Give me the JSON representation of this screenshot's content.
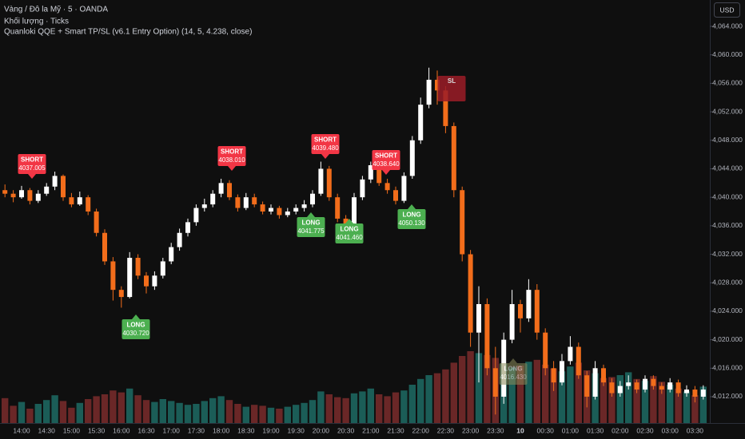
{
  "header": {
    "symbol": "Vàng / Đô la Mỹ · 5 · OANDA",
    "volume_line": "Khối lượng · Ticks",
    "indicator": "Quanloki QQE + Smart TP/SL (v6.1 Entry Option) (14, 5, 4.238, close)",
    "currency": "USD"
  },
  "chart_data": {
    "type": "candlestick",
    "categories": [
      null,
      null,
      "14:00",
      null,
      null,
      "14:30",
      null,
      null,
      "15:00",
      null,
      null,
      "15:30",
      null,
      null,
      "16:00",
      null,
      null,
      "16:30",
      null,
      null,
      "17:00",
      null,
      null,
      "17:30",
      null,
      null,
      "18:00",
      null,
      null,
      "18:30",
      null,
      null,
      "19:00",
      null,
      null,
      "19:30",
      null,
      null,
      "20:00",
      null,
      null,
      "20:30",
      null,
      null,
      "21:00",
      null,
      null,
      "21:30",
      null,
      null,
      "22:00",
      null,
      null,
      "22:30",
      null,
      null,
      "23:00",
      null,
      null,
      "23:30",
      null,
      null,
      "10",
      null,
      null,
      "00:30",
      null,
      null,
      "01:00",
      null,
      null,
      "01:30",
      null,
      null,
      "02:00",
      null,
      null,
      "02:30",
      null,
      null,
      "03:00",
      null,
      null,
      "03:30",
      null
    ],
    "open": [
      4041,
      4040.5,
      4040,
      4041,
      4039.5,
      4040.5,
      4041.5,
      4043,
      4040,
      4039,
      4040,
      4038,
      4035,
      4031,
      4027,
      4026,
      4031.5,
      4029,
      4027.5,
      4029,
      4031,
      4033,
      4035,
      4036.5,
      4038.5,
      4039,
      4040.5,
      4042,
      4040,
      4038.5,
      4040,
      4039,
      4038,
      4038.5,
      4037.5,
      4038,
      4038.5,
      4039,
      4040.5,
      4044,
      4040,
      4037,
      4036,
      4040,
      4042.5,
      4044.5,
      4042,
      4041,
      4039.5,
      4043,
      4048,
      4053,
      4056.5,
      4055,
      4050,
      4041,
      4032,
      4021,
      4025,
      4016,
      4012,
      4020,
      4025,
      4023,
      4027,
      4021,
      4016,
      4014,
      4017,
      4019,
      4015,
      4012,
      4016,
      4014,
      4012.5,
      4013.5,
      4014,
      4013,
      4014.5,
      4013.5,
      4013,
      4014,
      4012.5,
      4013,
      4012
    ],
    "high": [
      4041.8,
      4041,
      4041.6,
      4041.3,
      4041,
      4042,
      4043.6,
      4043.2,
      4040.6,
      4040.8,
      4040.3,
      4038.4,
      4035.5,
      4031.6,
      4027.5,
      4032.3,
      4032,
      4029.5,
      4029.6,
      4031.5,
      4033.6,
      4035.6,
      4037,
      4039,
      4039.8,
      4041,
      4042.6,
      4042.4,
      4040.4,
      4040.6,
      4040.5,
      4039.4,
      4039,
      4038.8,
      4038.5,
      4039,
      4039.6,
      4041,
      4045,
      4044.4,
      4040.5,
      4037.5,
      4040.6,
      4043,
      4045,
      4044.9,
      4042.6,
      4041.5,
      4043.5,
      4048.6,
      4054,
      4058.2,
      4057.8,
      4055.6,
      4050.5,
      4041.5,
      4032.6,
      4027.5,
      4025.8,
      4019,
      4021,
      4027,
      4025.6,
      4028.5,
      4027.8,
      4021.6,
      4017,
      4018,
      4020.5,
      4019.6,
      4015.6,
      4017,
      4016.5,
      4014.6,
      4014.2,
      4015,
      4014.4,
      4015,
      4015,
      4014,
      4014.6,
      4014.4,
      4013.6,
      4013.5,
      4013.6
    ],
    "low": [
      4040,
      4039.3,
      4039.8,
      4039,
      4039.2,
      4040.2,
      4041,
      4039.5,
      4038.6,
      4038.8,
      4037.5,
      4034.5,
      4030.5,
      4025.5,
      4024.5,
      4025.8,
      4028.5,
      4026.5,
      4027,
      4028.6,
      4030.6,
      4032.5,
      4034.5,
      4036,
      4038,
      4038.6,
      4040,
      4039.6,
      4038,
      4038.2,
      4038.6,
      4037.6,
      4037.6,
      4037,
      4037.2,
      4037.6,
      4038,
      4038.6,
      4040.2,
      4039.5,
      4036.5,
      4035,
      4035.7,
      4039.6,
      4042,
      4041.6,
      4040.5,
      4039,
      4039.2,
      4042.6,
      4047.5,
      4052.5,
      4053,
      4049,
      4040,
      4031,
      4019,
      4014,
      4015,
      4009.5,
      4011,
      4019.5,
      4021,
      4022.5,
      4020,
      4015,
      4012.8,
      4013.6,
      4016.5,
      4014.5,
      4010.5,
      4011.6,
      4013.5,
      4012,
      4012,
      4013,
      4012.5,
      4012.6,
      4013,
      4012.4,
      4012.6,
      4012,
      4012,
      4011.2,
      4011.6
    ],
    "close": [
      4040.5,
      4040,
      4041,
      4039.5,
      4040.5,
      4041.5,
      4043,
      4040,
      4039,
      4040,
      4038,
      4035,
      4031,
      4027,
      4026,
      4031.5,
      4029,
      4027.5,
      4029,
      4031,
      4033,
      4035,
      4036.5,
      4038.5,
      4039,
      4040.5,
      4042,
      4040,
      4038.5,
      4040,
      4039,
      4038,
      4038.5,
      4037.5,
      4038,
      4038.5,
      4039,
      4040.5,
      4044,
      4040,
      4037,
      4036,
      4040,
      4042.5,
      4044.5,
      4042,
      4041,
      4039.5,
      4043,
      4048,
      4053,
      4056.5,
      4055,
      4050,
      4041,
      4032,
      4021,
      4025,
      4016,
      4012,
      4020,
      4025,
      4023,
      4027,
      4021,
      4016,
      4014,
      4017,
      4019,
      4015,
      4012,
      4016,
      4014,
      4012.5,
      4013.5,
      4014,
      4013,
      4014.5,
      4013.5,
      4013,
      4014,
      4012.5,
      4013,
      4012,
      4013
    ],
    "volume": [
      2600,
      1800,
      2200,
      1500,
      2000,
      2400,
      2900,
      2300,
      1600,
      2100,
      2500,
      2800,
      3000,
      3400,
      3200,
      3600,
      2900,
      2400,
      2200,
      2500,
      2300,
      2100,
      1900,
      2000,
      2300,
      2600,
      2800,
      2400,
      2000,
      1700,
      1900,
      1800,
      1600,
      1500,
      1700,
      1900,
      2100,
      2400,
      3300,
      3000,
      2700,
      2600,
      3100,
      3300,
      3600,
      3000,
      2800,
      3200,
      3400,
      4000,
      4600,
      5000,
      5200,
      5600,
      6300,
      7000,
      7500,
      7300,
      7100,
      6800,
      6200,
      5800,
      6000,
      6400,
      6600,
      6100,
      5700,
      5400,
      5900,
      6300,
      5500,
      5200,
      4700,
      4800,
      5000,
      5300,
      4600,
      4400,
      4900,
      4300,
      4000,
      3600,
      3300,
      2900,
      3800
    ],
    "up_color": "#ffffff",
    "down_color": "#f26d1b",
    "volume_up_color": "#1d6b64",
    "volume_down_color": "#7a2b2b",
    "ylim": [
      4008.3,
      4067.7
    ],
    "yticks": [
      {
        "value": 4012,
        "label": "4,012.000"
      },
      {
        "value": 4016,
        "label": "4,016.000"
      },
      {
        "value": 4020,
        "label": "4,020.000"
      },
      {
        "value": 4024,
        "label": "4,024.000"
      },
      {
        "value": 4028,
        "label": "4,028.000"
      },
      {
        "value": 4032,
        "label": "4,032.000"
      },
      {
        "value": 4036,
        "label": "4,036.000"
      },
      {
        "value": 4040,
        "label": "4,040.000"
      },
      {
        "value": 4044,
        "label": "4,044.000"
      },
      {
        "value": 4048,
        "label": "4,048.000"
      },
      {
        "value": 4052,
        "label": "4,052.000"
      },
      {
        "value": 4056,
        "label": "4,056.000"
      },
      {
        "value": 4060,
        "label": "4,060.000"
      },
      {
        "value": 4064,
        "label": "4,064.000"
      }
    ],
    "signals": [
      {
        "label": "SHORT",
        "price": 4037.005,
        "color": "#f23645"
      },
      {
        "label": "LONG",
        "price": {
          "value": 4030.72,
          "label": "4030.720"
        },
        "color": "#4caf50"
      },
      {
        "label": "SHORT",
        "price": {
          "value": 4038.01,
          "label": "4038.010"
        },
        "color": "#f23645"
      },
      {
        "label": "SHORT",
        "price": {
          "value": 4039.48,
          "label": "4039.480"
        },
        "color": "#f23645"
      },
      {
        "label": "LONG",
        "price": 4041.775,
        "color": "#4caf50"
      },
      {
        "label": "LONG",
        "price": {
          "value": 4041.46,
          "label": "4041.460"
        },
        "color": "#4caf50"
      },
      {
        "label": "SHORT",
        "price": {
          "value": 4038.64,
          "label": "4038.640"
        },
        "color": "#f23645"
      },
      {
        "label": "LONG",
        "price": {
          "value": 4050.13,
          "label": "4050.130"
        },
        "color": "#4caf50"
      },
      {
        "label": "SL",
        "color": "#9b1c27"
      },
      {
        "label": "LONG",
        "price": {
          "value": 4016.43,
          "label": "4016.430"
        },
        "color": "#8c8c5a"
      }
    ]
  }
}
